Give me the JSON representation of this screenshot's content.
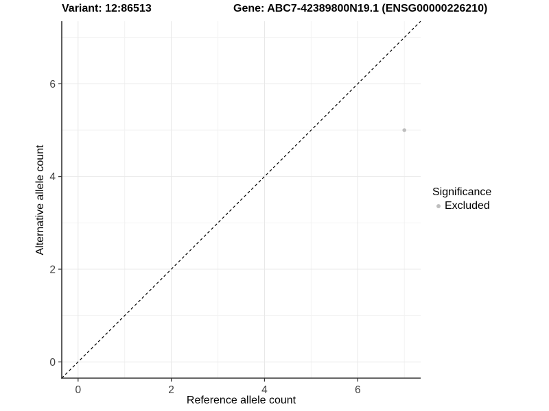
{
  "chart_data": {
    "type": "scatter",
    "title_left": "Variant: 12:86513",
    "title_right": "Gene: ABC7-42389800N19.1 (ENSG00000226210)",
    "xlabel": "Reference allele count",
    "ylabel": "Alternative allele count",
    "xlim": [
      -0.35,
      7.35
    ],
    "ylim": [
      -0.35,
      7.35
    ],
    "xticks": [
      0,
      2,
      4,
      6
    ],
    "yticks": [
      0,
      2,
      4,
      6
    ],
    "xminor": [
      1,
      3,
      5,
      7
    ],
    "yminor": [
      1,
      3,
      5,
      7
    ],
    "grid": true,
    "points": [
      {
        "x": 7,
        "y": 5,
        "significance": "Excluded"
      }
    ],
    "identity_line": {
      "style": "dashed",
      "from": [
        -0.35,
        -0.35
      ],
      "to": [
        7.35,
        7.35
      ]
    },
    "legend": {
      "title": "Significance",
      "position": "right",
      "items": [
        {
          "label": "Excluded",
          "color": "#bebebe"
        }
      ]
    },
    "colors": {
      "point": "#bebebe",
      "grid_major": "#e8e8e8",
      "grid_minor": "#f2f2f2",
      "axis_line": "#333333",
      "tick_label": "#404040",
      "dashed_line": "#000000",
      "background": "#ffffff"
    }
  }
}
